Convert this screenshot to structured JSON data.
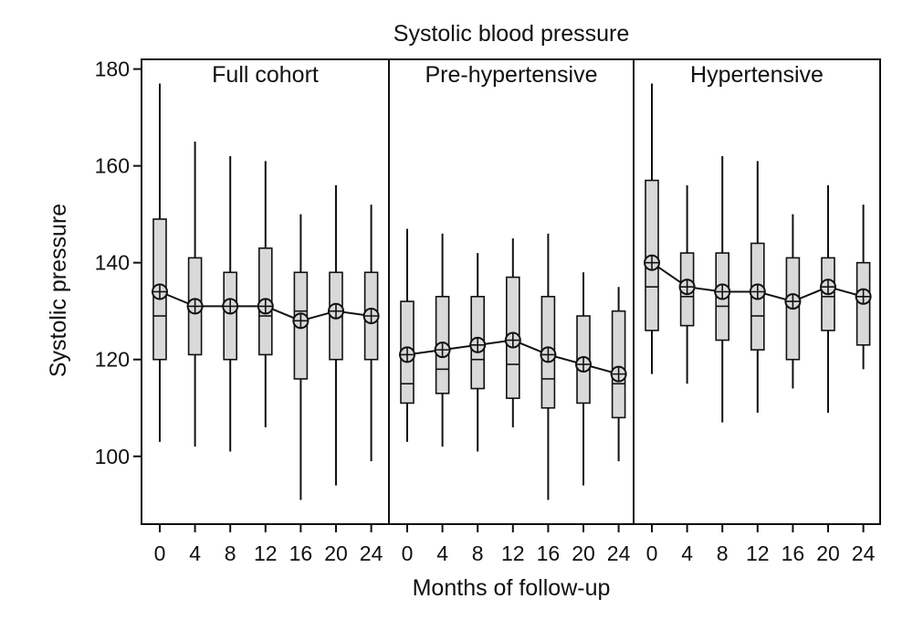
{
  "chart_data": {
    "type": "box",
    "title": "Systolic blood pressure",
    "xlabel": "Months of follow-up",
    "ylabel": "Systolic  pressure",
    "ylim": [
      86,
      182
    ],
    "yticks": [
      100,
      120,
      140,
      160,
      180
    ],
    "categories": [
      "0",
      "4",
      "8",
      "12",
      "16",
      "20",
      "24"
    ],
    "box_color": "#d9d9d9",
    "line_color": "#111111",
    "panels": [
      {
        "title": "Full cohort",
        "boxes": [
          {
            "month": "0",
            "min": 103,
            "q1": 120,
            "median": 129,
            "q3": 149,
            "max": 177,
            "mean": 134
          },
          {
            "month": "4",
            "min": 102,
            "q1": 121,
            "median": 131,
            "q3": 141,
            "max": 165,
            "mean": 131
          },
          {
            "month": "8",
            "min": 101,
            "q1": 120,
            "median": 130,
            "q3": 138,
            "max": 162,
            "mean": 131
          },
          {
            "month": "12",
            "min": 106,
            "q1": 121,
            "median": 129,
            "q3": 143,
            "max": 161,
            "mean": 131
          },
          {
            "month": "16",
            "min": 91,
            "q1": 116,
            "median": 130,
            "q3": 138,
            "max": 150,
            "mean": 128
          },
          {
            "month": "20",
            "min": 94,
            "q1": 120,
            "median": 130,
            "q3": 138,
            "max": 156,
            "mean": 130
          },
          {
            "month": "24",
            "min": 99,
            "q1": 120,
            "median": 129,
            "q3": 138,
            "max": 152,
            "mean": 129
          }
        ]
      },
      {
        "title": "Pre-hypertensive",
        "boxes": [
          {
            "month": "0",
            "min": 103,
            "q1": 111,
            "median": 115,
            "q3": 132,
            "max": 147,
            "mean": 121
          },
          {
            "month": "4",
            "min": 102,
            "q1": 113,
            "median": 118,
            "q3": 133,
            "max": 146,
            "mean": 122
          },
          {
            "month": "8",
            "min": 101,
            "q1": 114,
            "median": 120,
            "q3": 133,
            "max": 142,
            "mean": 123
          },
          {
            "month": "12",
            "min": 106,
            "q1": 112,
            "median": 119,
            "q3": 137,
            "max": 145,
            "mean": 124
          },
          {
            "month": "16",
            "min": 91,
            "q1": 110,
            "median": 116,
            "q3": 133,
            "max": 146,
            "mean": 121
          },
          {
            "month": "20",
            "min": 94,
            "q1": 111,
            "median": 119,
            "q3": 129,
            "max": 138,
            "mean": 119
          },
          {
            "month": "24",
            "min": 99,
            "q1": 108,
            "median": 115,
            "q3": 130,
            "max": 135,
            "mean": 117
          }
        ]
      },
      {
        "title": "Hypertensive",
        "boxes": [
          {
            "month": "0",
            "min": 117,
            "q1": 126,
            "median": 135,
            "q3": 157,
            "max": 177,
            "mean": 140
          },
          {
            "month": "4",
            "min": 115,
            "q1": 127,
            "median": 133,
            "q3": 142,
            "max": 156,
            "mean": 135
          },
          {
            "month": "8",
            "min": 107,
            "q1": 124,
            "median": 131,
            "q3": 142,
            "max": 162,
            "mean": 134
          },
          {
            "month": "12",
            "min": 109,
            "q1": 122,
            "median": 129,
            "q3": 144,
            "max": 161,
            "mean": 134
          },
          {
            "month": "16",
            "min": 114,
            "q1": 120,
            "median": 132,
            "q3": 141,
            "max": 150,
            "mean": 132
          },
          {
            "month": "20",
            "min": 109,
            "q1": 126,
            "median": 133,
            "q3": 141,
            "max": 156,
            "mean": 135
          },
          {
            "month": "24",
            "min": 118,
            "q1": 123,
            "median": 133,
            "q3": 140,
            "max": 152,
            "mean": 133
          }
        ]
      }
    ]
  }
}
